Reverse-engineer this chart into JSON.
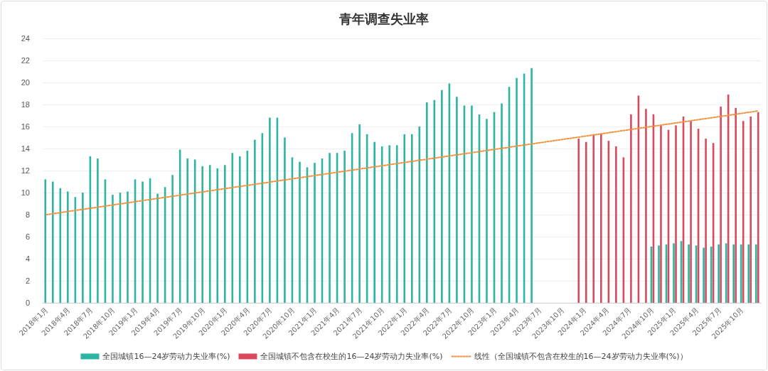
{
  "chart_data": {
    "type": "bar",
    "title": "青年调查失业率",
    "categories": [
      "2018年1月",
      null,
      null,
      "2018年4月",
      null,
      null,
      "2018年7月",
      null,
      null,
      "2018年10月",
      null,
      null,
      "2019年1月",
      null,
      null,
      "2019年4月",
      null,
      null,
      "2019年7月",
      null,
      null,
      "2019年10月",
      null,
      null,
      "2020年1月",
      null,
      null,
      "2020年4月",
      null,
      null,
      "2020年7月",
      null,
      null,
      "2020年10月",
      null,
      null,
      "2021年1月",
      null,
      null,
      "2021年4月",
      null,
      null,
      "2021年7月",
      null,
      null,
      "2021年10月",
      null,
      null,
      "2022年1月",
      null,
      null,
      "2022年4月",
      null,
      null,
      "2022年7月",
      null,
      null,
      "2022年10月",
      null,
      null,
      "2023年1月",
      null,
      null,
      "2023年4月",
      null,
      null,
      "2023年7月",
      null,
      null,
      "2023年10月",
      null,
      null,
      "2024年1月",
      null,
      null,
      "2024年4月",
      null,
      null,
      "2024年7月",
      null,
      null,
      "2024年10月",
      null,
      null,
      "2025年1月",
      null,
      null,
      "2025年4月",
      null,
      null,
      "2025年7月",
      null,
      null,
      "2025年10月",
      null,
      null
    ],
    "series": [
      {
        "name": "全国城镇16—24岁劳动力失业率(%)",
        "color": "#2bb5a2",
        "values": [
          11.2,
          11.0,
          10.4,
          10.1,
          9.6,
          10.0,
          13.3,
          13.1,
          11.2,
          9.8,
          10.0,
          10.1,
          11.2,
          11.0,
          11.3,
          9.9,
          10.5,
          11.6,
          13.9,
          13.1,
          13.0,
          12.4,
          12.5,
          12.2,
          12.5,
          13.6,
          13.3,
          13.8,
          14.8,
          15.4,
          16.8,
          16.8,
          15.0,
          13.2,
          12.8,
          12.3,
          12.7,
          13.1,
          13.6,
          13.6,
          13.8,
          15.4,
          16.2,
          15.3,
          14.6,
          14.2,
          14.3,
          14.3,
          15.3,
          15.3,
          16.0,
          18.2,
          18.4,
          19.3,
          19.9,
          18.7,
          17.9,
          17.9,
          17.1,
          16.7,
          17.3,
          18.1,
          19.6,
          20.4,
          20.8,
          21.3,
          null,
          null,
          null,
          null,
          null,
          null,
          null,
          null,
          null,
          null,
          null,
          null,
          null,
          null,
          null,
          5.1,
          5.2,
          5.3,
          5.4,
          5.6,
          5.3,
          5.2,
          5.0,
          5.1,
          5.3,
          5.4,
          5.3,
          5.3,
          5.3,
          5.3
        ]
      },
      {
        "name": "全国城镇不包含在校生的16—24岁劳动力失业率(%)",
        "color": "#d94a5c",
        "values": [
          null,
          null,
          null,
          null,
          null,
          null,
          null,
          null,
          null,
          null,
          null,
          null,
          null,
          null,
          null,
          null,
          null,
          null,
          null,
          null,
          null,
          null,
          null,
          null,
          null,
          null,
          null,
          null,
          null,
          null,
          null,
          null,
          null,
          null,
          null,
          null,
          null,
          null,
          null,
          null,
          null,
          null,
          null,
          null,
          null,
          null,
          null,
          null,
          null,
          null,
          null,
          null,
          null,
          null,
          null,
          null,
          null,
          null,
          null,
          null,
          null,
          null,
          null,
          null,
          null,
          null,
          null,
          null,
          null,
          null,
          null,
          14.9,
          14.6,
          15.3,
          15.3,
          14.7,
          14.2,
          13.2,
          17.1,
          18.8,
          17.6,
          17.1,
          16.1,
          15.7,
          16.1,
          16.9,
          16.5,
          15.8,
          14.9,
          14.5,
          17.8,
          18.9,
          17.7,
          16.5,
          16.9,
          17.3
        ]
      },
      {
        "name": "线性（全国城镇不包含在校生的16—24岁劳动力失业率(%)）",
        "type": "line",
        "color": "#f0913e",
        "line_style": "dotted",
        "marker": "none",
        "values": [
          8.0,
          null,
          null,
          null,
          null,
          null,
          null,
          null,
          null,
          null,
          null,
          null,
          null,
          null,
          null,
          null,
          null,
          null,
          null,
          null,
          null,
          null,
          null,
          null,
          null,
          null,
          null,
          null,
          null,
          null,
          null,
          null,
          null,
          null,
          null,
          null,
          null,
          null,
          null,
          null,
          null,
          null,
          null,
          null,
          null,
          null,
          null,
          null,
          null,
          null,
          null,
          null,
          null,
          null,
          null,
          null,
          null,
          null,
          null,
          null,
          null,
          null,
          null,
          null,
          null,
          null,
          null,
          null,
          null,
          null,
          null,
          null,
          null,
          null,
          null,
          null,
          null,
          null,
          null,
          null,
          null,
          null,
          null,
          null,
          null,
          null,
          null,
          null,
          null,
          null,
          null,
          null,
          null,
          null,
          null,
          17.4
        ]
      }
    ],
    "ylim": [
      0,
      24
    ],
    "yticks": [
      0,
      2,
      4,
      6,
      8,
      10,
      12,
      14,
      16,
      18,
      20,
      22,
      24
    ],
    "grid": "y",
    "legend": "bottom"
  }
}
